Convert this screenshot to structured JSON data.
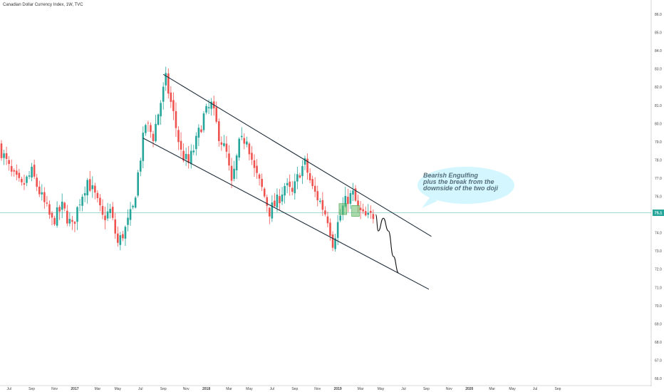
{
  "chart_data": {
    "type": "candlestick",
    "title": "Canadian Dollar Currency Index, 1W, TVC",
    "last_price_label": "75.1",
    "last_price": 75.1,
    "ylim": [
      66.0,
      86.0
    ],
    "y_ticks": [
      66.0,
      67.0,
      68.0,
      69.0,
      70.0,
      71.0,
      72.0,
      73.0,
      74.0,
      75.0,
      76.0,
      77.0,
      78.0,
      79.0,
      80.0,
      81.0,
      82.0,
      83.0,
      84.0,
      85.0,
      86.0
    ],
    "x_tick_labels": [
      {
        "label": "Jul",
        "week": 3
      },
      {
        "label": "Sep",
        "week": 12
      },
      {
        "label": "Nov",
        "week": 21
      },
      {
        "label": "2017",
        "week": 29
      },
      {
        "label": "Mar",
        "week": 38
      },
      {
        "label": "May",
        "week": 46
      },
      {
        "label": "Jul",
        "week": 55
      },
      {
        "label": "Sep",
        "week": 64
      },
      {
        "label": "Nov",
        "week": 73
      },
      {
        "label": "2018",
        "week": 81
      },
      {
        "label": "Mar",
        "week": 90
      },
      {
        "label": "May",
        "week": 98
      },
      {
        "label": "Jul",
        "week": 107
      },
      {
        "label": "Sep",
        "week": 116
      },
      {
        "label": "Nov",
        "week": 125
      },
      {
        "label": "2019",
        "week": 133
      },
      {
        "label": "Mar",
        "week": 142
      },
      {
        "label": "May",
        "week": 150
      },
      {
        "label": "Jul",
        "week": 159
      },
      {
        "label": "Sep",
        "week": 168
      },
      {
        "label": "Nov",
        "week": 177
      },
      {
        "label": "2020",
        "week": 185
      },
      {
        "label": "Mar",
        "week": 194
      },
      {
        "label": "May",
        "week": 202
      },
      {
        "label": "Jul",
        "week": 211
      },
      {
        "label": "Sep",
        "week": 220
      }
    ],
    "anchors": [
      {
        "week": 0,
        "price": 78.5
      },
      {
        "week": 4,
        "price": 77.2
      },
      {
        "week": 8,
        "price": 76.5
      },
      {
        "week": 12,
        "price": 77.3
      },
      {
        "week": 16,
        "price": 75.9
      },
      {
        "week": 20,
        "price": 74.6
      },
      {
        "week": 24,
        "price": 75.4
      },
      {
        "week": 28,
        "price": 74.3
      },
      {
        "week": 31,
        "price": 75.8
      },
      {
        "week": 34,
        "price": 76.9
      },
      {
        "week": 37,
        "price": 76.0
      },
      {
        "week": 40,
        "price": 74.8
      },
      {
        "week": 43,
        "price": 75.2
      },
      {
        "week": 46,
        "price": 73.4
      },
      {
        "week": 49,
        "price": 74.2
      },
      {
        "week": 52,
        "price": 75.3
      },
      {
        "week": 55,
        "price": 78.2
      },
      {
        "week": 57,
        "price": 80.0
      },
      {
        "week": 60,
        "price": 79.3
      },
      {
        "week": 63,
        "price": 81.2
      },
      {
        "week": 65,
        "price": 82.4
      },
      {
        "week": 68,
        "price": 80.5
      },
      {
        "week": 71,
        "price": 78.4
      },
      {
        "week": 74,
        "price": 77.8
      },
      {
        "week": 77,
        "price": 79.0
      },
      {
        "week": 80,
        "price": 80.4
      },
      {
        "week": 83,
        "price": 81.0
      },
      {
        "week": 86,
        "price": 79.4
      },
      {
        "week": 89,
        "price": 78.3
      },
      {
        "week": 91,
        "price": 76.6
      },
      {
        "week": 94,
        "price": 78.8
      },
      {
        "week": 97,
        "price": 79.3
      },
      {
        "week": 100,
        "price": 77.4
      },
      {
        "week": 103,
        "price": 76.4
      },
      {
        "week": 106,
        "price": 75.2
      },
      {
        "week": 109,
        "price": 75.7
      },
      {
        "week": 112,
        "price": 76.6
      },
      {
        "week": 115,
        "price": 76.1
      },
      {
        "week": 118,
        "price": 77.4
      },
      {
        "week": 120,
        "price": 77.8
      },
      {
        "week": 123,
        "price": 76.4
      },
      {
        "week": 126,
        "price": 75.7
      },
      {
        "week": 129,
        "price": 74.8
      },
      {
        "week": 131,
        "price": 73.5
      },
      {
        "week": 133,
        "price": 74.5
      },
      {
        "week": 135,
        "price": 75.4
      },
      {
        "week": 137,
        "price": 75.9
      },
      {
        "week": 139,
        "price": 76.1
      },
      {
        "week": 141,
        "price": 75.3
      },
      {
        "week": 143,
        "price": 74.9
      },
      {
        "week": 145,
        "price": 74.8
      },
      {
        "week": 147,
        "price": 75.0
      }
    ],
    "channel_lines": [
      {
        "name": "upper",
        "from": {
          "week": 64,
          "price": 82.7
        },
        "to": {
          "week": 170,
          "price": 73.8
        }
      },
      {
        "name": "lower",
        "from": {
          "week": 56,
          "price": 79.2
        },
        "to": {
          "week": 169,
          "price": 70.9
        }
      }
    ],
    "horizontal_line": {
      "price": 75.1,
      "color": "#80cbc4"
    },
    "projection": [
      {
        "week": 148,
        "price": 75.0
      },
      {
        "week": 149,
        "price": 74.1
      },
      {
        "week": 151,
        "price": 74.8
      },
      {
        "week": 153,
        "price": 74.1
      },
      {
        "week": 155,
        "price": 72.7
      },
      {
        "week": 157,
        "price": 71.8
      }
    ],
    "highlight_boxes": [
      {
        "week_start": 133.5,
        "week_end": 136.5,
        "price_low": 75.0,
        "price_high": 75.6
      },
      {
        "week_start": 138.5,
        "week_end": 141.5,
        "price_low": 74.9,
        "price_high": 75.5
      }
    ],
    "annotation": [
      "Bearish Engulfing",
      "plus the break from the",
      "downside of the two doji"
    ],
    "colors": {
      "up": "#26a69a",
      "down": "#ef5350",
      "trendline": "#1f2d3a",
      "annotation_fill": "#cff5ff",
      "annotation_text": "#546e7a",
      "price_tag": "#26a69a",
      "axis_text": "#444444"
    }
  }
}
